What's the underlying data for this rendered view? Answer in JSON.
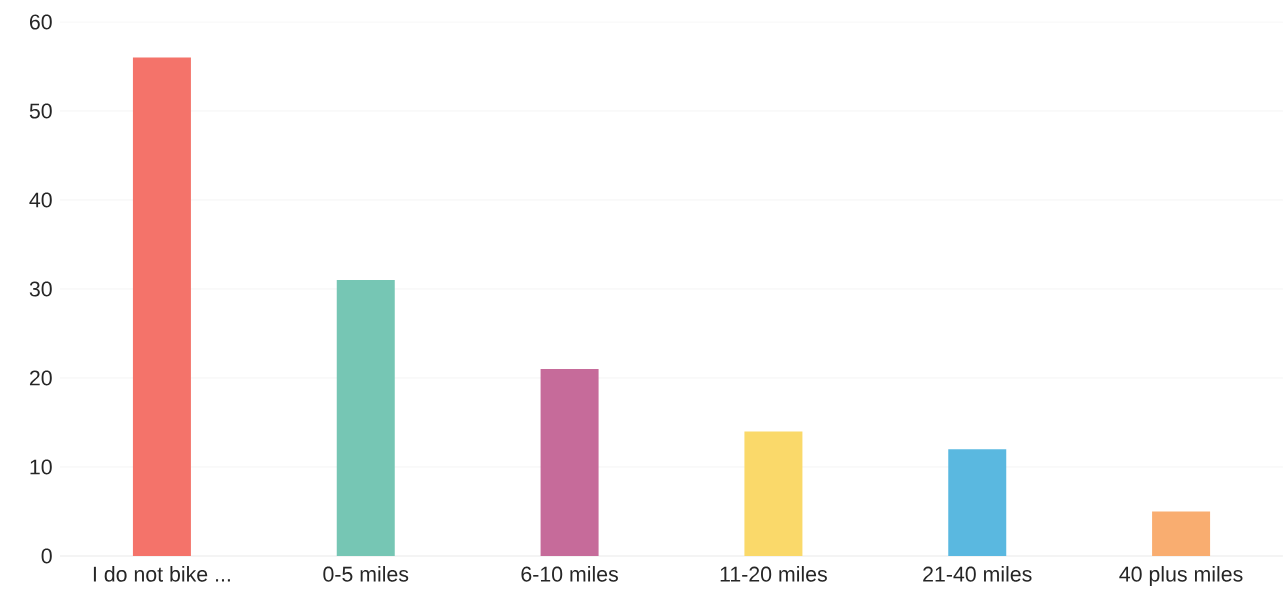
{
  "chart_data": {
    "type": "bar",
    "categories": [
      "I do not bike ...",
      "0-5 miles",
      "6-10 miles",
      "11-20 miles",
      "21-40 miles",
      "40 plus miles"
    ],
    "values": [
      56,
      31,
      21,
      14,
      12,
      5
    ],
    "colors": [
      "#f4736a",
      "#76c6b4",
      "#c66b9a",
      "#fad96a",
      "#5ab8e0",
      "#f9ad70"
    ],
    "ylim": [
      0,
      60
    ],
    "yticks": [
      0,
      10,
      20,
      30,
      40,
      50,
      60
    ],
    "grid": "y"
  }
}
